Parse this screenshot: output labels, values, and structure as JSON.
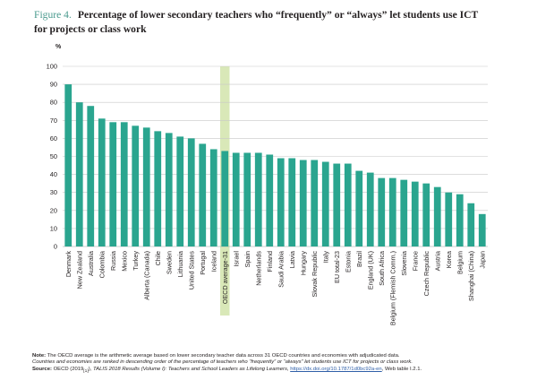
{
  "figure": {
    "label": "Figure 4.",
    "title_line1": "Percentage of lower secondary teachers who “frequently” or “always” let students use ICT",
    "title_line2": "for projects or class work"
  },
  "chart_data": {
    "type": "bar",
    "unit_label": "%",
    "ylim": [
      0,
      100
    ],
    "yticks": [
      0,
      10,
      20,
      30,
      40,
      50,
      60,
      70,
      80,
      90,
      100
    ],
    "grid": true,
    "bar_color": "#2aa58f",
    "highlight_color": "#d9e8b8",
    "highlight_category": "OECD average-31",
    "categories": [
      "Denmark",
      "New Zealand",
      "Australia",
      "Colombia",
      "Russia",
      "Mexico",
      "Turkey",
      "Alberta (Canada)",
      "Chile",
      "Sweden",
      "Lithuania",
      "United States",
      "Portugal",
      "Iceland",
      "OECD average-31",
      "Israel",
      "Spain",
      "Netherlands",
      "Finland",
      "Saudi Arabia",
      "Latvia",
      "Hungary",
      "Slovak Republic",
      "Italy",
      "EU total-23",
      "Estonia",
      "Brazil",
      "England (UK)",
      "South Africa",
      "Belgium (Flemish Comm.)",
      "Slovenia",
      "France",
      "Czech Republic",
      "Austria",
      "Korea",
      "Belgium",
      "Shanghai (China)",
      "Japan"
    ],
    "values": [
      90,
      80,
      78,
      71,
      69,
      69,
      67,
      66,
      64,
      63,
      61,
      60,
      57,
      54,
      53,
      52,
      52,
      52,
      51,
      49,
      49,
      48,
      48,
      47,
      46,
      46,
      42,
      41,
      38,
      38,
      37,
      36,
      35,
      33,
      30,
      29,
      24,
      18
    ]
  },
  "notes": {
    "line1_bold": "Note:",
    "line1": " The OECD average is the arithmetic average based on lower secondary teacher data across 31 OECD countries and economies with adjudicated data.",
    "line2": "Countries and economies are ranked in descending order of the percentage of teachers who “frequently” or “always” let students use ICT for projects or class work.",
    "line3_bold": "Source:",
    "line3a": " OECD (2019",
    "line3_sub": "[1]",
    "line3b": "), ",
    "line3_italic": "TALIS 2018 Results (Volume I): Teachers and School Leaders as Lifelong Learners",
    "line3c": ", ",
    "link": "https://dx.doi.org/10.1787/1d0bc92a-en",
    "line3d": ", Web table I.2.1."
  }
}
